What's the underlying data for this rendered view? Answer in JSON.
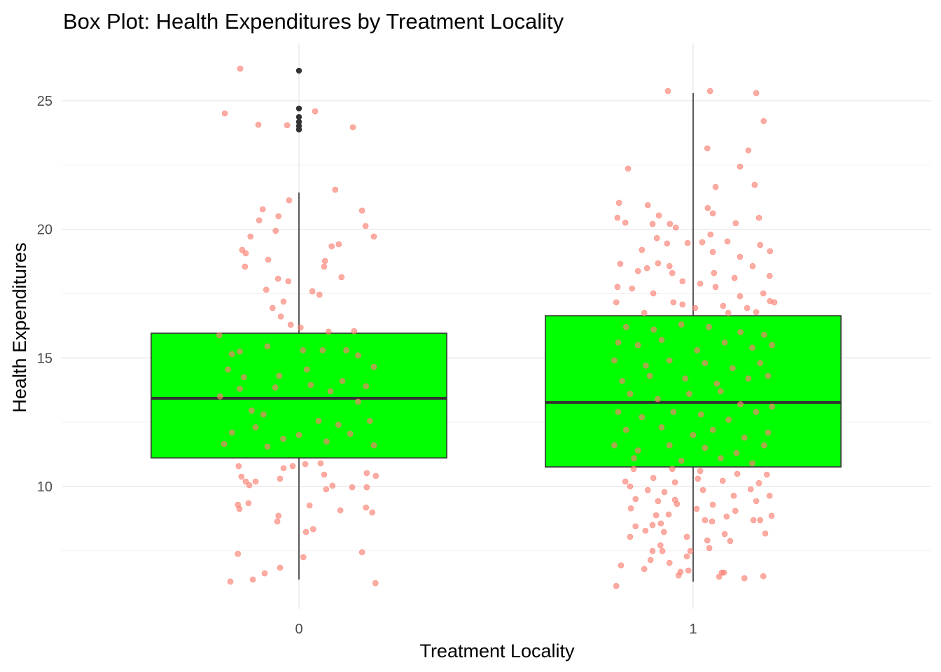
{
  "chart_data": {
    "type": "box",
    "title": "Box Plot: Health Expenditures by Treatment Locality",
    "xlabel": "Treatment Locality",
    "ylabel": "Health Expenditures",
    "categories": [
      "0",
      "1"
    ],
    "ylim": [
      5.7,
      27.2
    ],
    "yticks": [
      10,
      15,
      20,
      25
    ],
    "grid": true,
    "box_fill": "#00FF00",
    "point_color": "#FA8072",
    "outlier_color": "#333333",
    "boxes": [
      {
        "category": "0",
        "lower_whisker": 6.38,
        "q1": 11.11,
        "median": 13.43,
        "q3": 15.96,
        "upper_whisker": 21.43,
        "outliers": [
          26.17,
          24.7,
          24.37,
          24.18,
          24.02,
          23.88
        ]
      },
      {
        "category": "1",
        "lower_whisker": 6.3,
        "q1": 10.76,
        "median": 13.27,
        "q3": 16.64,
        "upper_whisker": 25.3,
        "outliers": []
      }
    ],
    "jitter_points": [
      {
        "category": "0",
        "points": [
          [
            -0.149,
            26.25
          ],
          [
            -0.188,
            24.51
          ],
          [
            -0.103,
            24.07
          ],
          [
            -0.03,
            24.05
          ],
          [
            0.041,
            24.59
          ],
          [
            0.137,
            23.97
          ],
          [
            0.092,
            21.54
          ],
          [
            -0.025,
            21.13
          ],
          [
            -0.092,
            20.78
          ],
          [
            0.16,
            20.73
          ],
          [
            -0.052,
            20.51
          ],
          [
            -0.101,
            20.35
          ],
          [
            0.169,
            20.13
          ],
          [
            -0.059,
            19.94
          ],
          [
            -0.123,
            19.72
          ],
          [
            0.19,
            19.72
          ],
          [
            0.101,
            19.42
          ],
          [
            0.083,
            19.34
          ],
          [
            -0.144,
            19.2
          ],
          [
            -0.135,
            19.07
          ],
          [
            0.066,
            18.77
          ],
          [
            -0.078,
            18.82
          ],
          [
            0.064,
            18.55
          ],
          [
            -0.137,
            18.55
          ],
          [
            0.108,
            18.14
          ],
          [
            -0.053,
            18.08
          ],
          [
            -0.027,
            17.98
          ],
          [
            -0.083,
            17.65
          ],
          [
            0.034,
            17.59
          ],
          [
            0.052,
            17.46
          ],
          [
            -0.039,
            17.19
          ],
          [
            -0.067,
            16.94
          ],
          [
            -0.046,
            16.61
          ],
          [
            -0.021,
            16.29
          ],
          [
            0.004,
            16.18
          ],
          [
            0.14,
            16.04
          ],
          [
            0.075,
            16.02
          ],
          [
            -0.202,
            15.88
          ],
          [
            -0.17,
            15.15
          ],
          [
            -0.15,
            15.25
          ],
          [
            -0.08,
            15.45
          ],
          [
            0.01,
            15.3
          ],
          [
            0.06,
            15.3
          ],
          [
            0.12,
            15.3
          ],
          [
            0.15,
            15.1
          ],
          [
            0.19,
            14.65
          ],
          [
            -0.18,
            14.55
          ],
          [
            -0.14,
            14.25
          ],
          [
            -0.05,
            14.3
          ],
          [
            0.02,
            14.55
          ],
          [
            0.11,
            14.1
          ],
          [
            0.17,
            13.9
          ],
          [
            -0.2,
            13.5
          ],
          [
            -0.15,
            13.8
          ],
          [
            -0.06,
            13.85
          ],
          [
            0.03,
            13.95
          ],
          [
            0.08,
            13.7
          ],
          [
            0.15,
            13.3
          ],
          [
            -0.12,
            12.95
          ],
          [
            -0.09,
            12.8
          ],
          [
            0.0,
            12.0
          ],
          [
            0.05,
            12.55
          ],
          [
            0.1,
            12.4
          ],
          [
            0.18,
            12.55
          ],
          [
            -0.17,
            12.1
          ],
          [
            -0.11,
            12.3
          ],
          [
            -0.04,
            11.85
          ],
          [
            0.07,
            11.75
          ],
          [
            0.13,
            12.05
          ],
          [
            -0.19,
            11.65
          ],
          [
            -0.08,
            11.55
          ],
          [
            0.19,
            11.6
          ],
          [
            -0.153,
            10.79
          ],
          [
            0.055,
            10.9
          ],
          [
            0.016,
            10.87
          ],
          [
            -0.016,
            10.79
          ],
          [
            -0.039,
            10.71
          ],
          [
            -0.146,
            10.38
          ],
          [
            0.064,
            10.46
          ],
          [
            -0.135,
            10.19
          ],
          [
            -0.11,
            10.19
          ],
          [
            -0.126,
            10.05
          ],
          [
            -0.048,
            10.3
          ],
          [
            0.085,
            10.03
          ],
          [
            0.135,
            9.97
          ],
          [
            0.172,
            9.97
          ],
          [
            0.195,
            10.41
          ],
          [
            0.172,
            10.52
          ],
          [
            0.069,
            9.89
          ],
          [
            0.027,
            9.26
          ],
          [
            -0.155,
            9.29
          ],
          [
            -0.128,
            9.35
          ],
          [
            -0.151,
            9.13
          ],
          [
            0.105,
            9.07
          ],
          [
            0.17,
            9.18
          ],
          [
            0.186,
            8.99
          ],
          [
            -0.052,
            8.86
          ],
          [
            -0.055,
            8.64
          ],
          [
            0.036,
            8.34
          ],
          [
            0.018,
            8.23
          ],
          [
            -0.155,
            7.38
          ],
          [
            0.16,
            7.44
          ],
          [
            0.011,
            7.25
          ],
          [
            -0.048,
            6.84
          ],
          [
            -0.087,
            6.62
          ],
          [
            -0.117,
            6.38
          ],
          [
            -0.174,
            6.3
          ],
          [
            0.194,
            6.24
          ]
        ]
      },
      {
        "category": "1",
        "points": [
          [
            -0.064,
            25.38
          ],
          [
            0.043,
            25.38
          ],
          [
            0.16,
            25.3
          ],
          [
            0.179,
            24.21
          ],
          [
            0.036,
            23.15
          ],
          [
            0.14,
            23.07
          ],
          [
            -0.165,
            22.36
          ],
          [
            0.119,
            22.44
          ],
          [
            0.057,
            21.65
          ],
          [
            0.156,
            21.73
          ],
          [
            -0.188,
            21.03
          ],
          [
            -0.115,
            20.94
          ],
          [
            -0.192,
            20.45
          ],
          [
            0.037,
            20.83
          ],
          [
            0.05,
            20.62
          ],
          [
            -0.087,
            20.54
          ],
          [
            0.167,
            20.45
          ],
          [
            -0.172,
            20.26
          ],
          [
            -0.103,
            20.21
          ],
          [
            -0.059,
            20.21
          ],
          [
            0.108,
            20.24
          ],
          [
            -0.044,
            20.07
          ],
          [
            0.044,
            19.8
          ],
          [
            0.087,
            19.53
          ],
          [
            -0.092,
            19.66
          ],
          [
            -0.066,
            19.45
          ],
          [
            -0.014,
            19.47
          ],
          [
            0.023,
            19.5
          ],
          [
            0.17,
            19.39
          ],
          [
            -0.13,
            19.2
          ],
          [
            0.195,
            19.15
          ],
          [
            0.05,
            19.12
          ],
          [
            0.119,
            18.93
          ],
          [
            -0.185,
            18.66
          ],
          [
            -0.089,
            18.68
          ],
          [
            -0.06,
            18.57
          ],
          [
            0.151,
            18.57
          ],
          [
            -0.14,
            18.38
          ],
          [
            -0.117,
            18.49
          ],
          [
            -0.053,
            18.3
          ],
          [
            0.194,
            18.19
          ],
          [
            0.053,
            18.3
          ],
          [
            0.105,
            18.11
          ],
          [
            -0.027,
            17.98
          ],
          [
            0.018,
            17.89
          ],
          [
            -0.192,
            17.76
          ],
          [
            -0.155,
            17.7
          ],
          [
            -0.101,
            17.51
          ],
          [
            0.057,
            17.76
          ],
          [
            0.119,
            17.4
          ],
          [
            0.178,
            17.51
          ],
          [
            -0.195,
            17.16
          ],
          [
            -0.05,
            17.16
          ],
          [
            -0.027,
            17.08
          ],
          [
            0.005,
            16.94
          ],
          [
            0.076,
            17.02
          ],
          [
            0.195,
            17.21
          ],
          [
            0.137,
            16.94
          ],
          [
            0.206,
            17.16
          ],
          [
            -0.124,
            16.75
          ],
          [
            0.089,
            16.75
          ],
          [
            0.16,
            16.78
          ],
          [
            -0.17,
            16.2
          ],
          [
            -0.1,
            16.1
          ],
          [
            -0.03,
            16.3
          ],
          [
            0.04,
            16.2
          ],
          [
            0.12,
            16.0
          ],
          [
            0.18,
            15.9
          ],
          [
            -0.19,
            15.6
          ],
          [
            -0.14,
            15.5
          ],
          [
            -0.08,
            15.7
          ],
          [
            0.01,
            15.3
          ],
          [
            0.08,
            15.6
          ],
          [
            0.15,
            15.4
          ],
          [
            0.2,
            15.5
          ],
          [
            -0.2,
            14.9
          ],
          [
            -0.12,
            14.7
          ],
          [
            -0.06,
            14.9
          ],
          [
            0.03,
            14.8
          ],
          [
            0.1,
            14.6
          ],
          [
            0.17,
            14.8
          ],
          [
            -0.18,
            14.1
          ],
          [
            -0.11,
            14.3
          ],
          [
            -0.02,
            14.2
          ],
          [
            0.06,
            14.0
          ],
          [
            0.14,
            14.2
          ],
          [
            0.19,
            14.3
          ],
          [
            -0.16,
            13.6
          ],
          [
            -0.09,
            13.4
          ],
          [
            -0.01,
            13.6
          ],
          [
            0.07,
            13.7
          ],
          [
            0.12,
            13.2
          ],
          [
            0.2,
            13.1
          ],
          [
            -0.19,
            12.9
          ],
          [
            -0.13,
            12.7
          ],
          [
            -0.05,
            12.9
          ],
          [
            0.02,
            12.8
          ],
          [
            0.09,
            12.6
          ],
          [
            0.16,
            12.9
          ],
          [
            -0.17,
            12.2
          ],
          [
            -0.08,
            12.3
          ],
          [
            0.0,
            12.0
          ],
          [
            0.05,
            12.2
          ],
          [
            0.13,
            11.9
          ],
          [
            0.19,
            12.1
          ],
          [
            -0.2,
            11.6
          ],
          [
            -0.14,
            11.4
          ],
          [
            -0.06,
            11.6
          ],
          [
            0.03,
            11.5
          ],
          [
            0.11,
            11.3
          ],
          [
            0.18,
            11.6
          ],
          [
            -0.15,
            11.1
          ],
          [
            -0.03,
            11.0
          ],
          [
            0.07,
            11.1
          ],
          [
            0.15,
            10.9
          ],
          [
            -0.151,
            10.68
          ],
          [
            -0.053,
            10.68
          ],
          [
            0.018,
            10.6
          ],
          [
            0.112,
            10.49
          ],
          [
            0.187,
            10.46
          ],
          [
            -0.172,
            10.19
          ],
          [
            -0.101,
            10.33
          ],
          [
            0.012,
            10.3
          ],
          [
            -0.046,
            10.16
          ],
          [
            0.075,
            10.22
          ],
          [
            0.167,
            10.13
          ],
          [
            -0.16,
            10.0
          ],
          [
            0.025,
            9.86
          ],
          [
            0.146,
            9.89
          ],
          [
            -0.115,
            9.86
          ],
          [
            -0.073,
            9.78
          ],
          [
            0.103,
            9.64
          ],
          [
            0.194,
            9.64
          ],
          [
            -0.146,
            9.51
          ],
          [
            -0.089,
            9.43
          ],
          [
            -0.046,
            9.48
          ],
          [
            0.16,
            9.43
          ],
          [
            -0.158,
            9.15
          ],
          [
            -0.041,
            9.32
          ],
          [
            0.05,
            9.29
          ],
          [
            0.009,
            9.13
          ],
          [
            0.107,
            9.05
          ],
          [
            -0.094,
            8.88
          ],
          [
            -0.062,
            8.91
          ],
          [
            0.199,
            8.86
          ],
          [
            0.085,
            8.83
          ],
          [
            0.03,
            8.69
          ],
          [
            0.048,
            8.64
          ],
          [
            0.153,
            8.69
          ],
          [
            0.17,
            8.69
          ],
          [
            -0.146,
            8.45
          ],
          [
            -0.103,
            8.5
          ],
          [
            -0.082,
            8.56
          ],
          [
            -0.121,
            8.28
          ],
          [
            -0.074,
            8.23
          ],
          [
            -0.16,
            8.04
          ],
          [
            -0.016,
            8.04
          ],
          [
            0.08,
            8.15
          ],
          [
            0.183,
            8.17
          ],
          [
            0.094,
            7.88
          ],
          [
            0.036,
            7.9
          ],
          [
            -0.083,
            7.71
          ],
          [
            -0.103,
            7.49
          ],
          [
            -0.078,
            7.49
          ],
          [
            -0.007,
            7.49
          ],
          [
            0.041,
            7.6
          ],
          [
            -0.016,
            7.28
          ],
          [
            -0.108,
            7.14
          ],
          [
            -0.06,
            7.03
          ],
          [
            -0.183,
            6.93
          ],
          [
            -0.124,
            6.79
          ],
          [
            -0.012,
            6.73
          ],
          [
            -0.032,
            6.68
          ],
          [
            -0.037,
            6.54
          ],
          [
            0.073,
            6.65
          ],
          [
            0.078,
            6.65
          ],
          [
            0.066,
            6.49
          ],
          [
            0.13,
            6.43
          ],
          [
            0.178,
            6.51
          ],
          [
            -0.195,
            6.13
          ]
        ]
      }
    ]
  }
}
